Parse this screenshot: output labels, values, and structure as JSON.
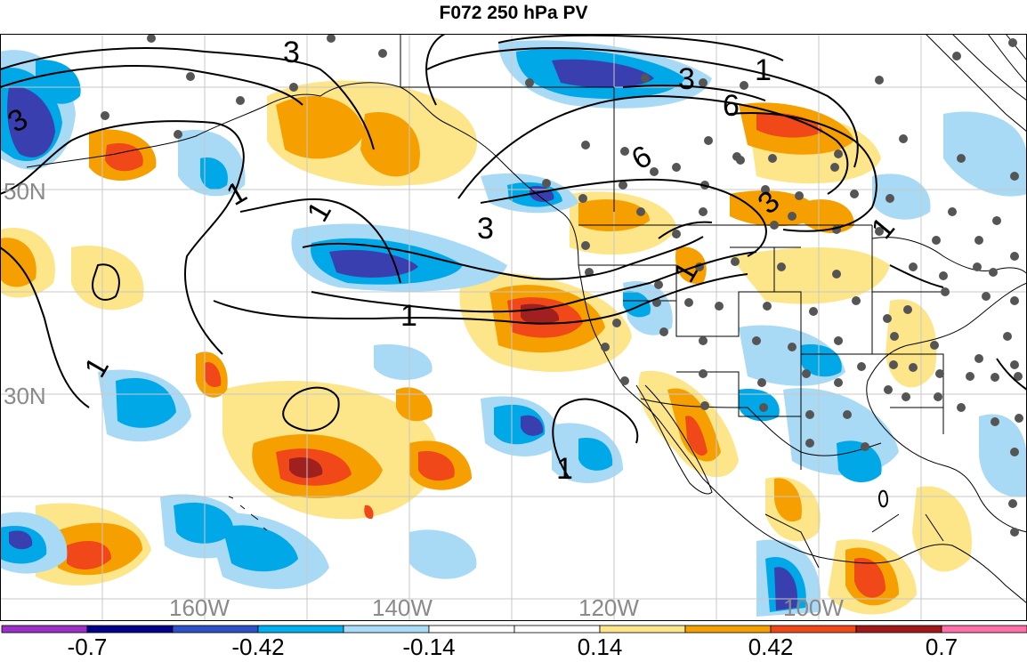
{
  "title": "F072 250 hPa PV",
  "lat_labels": [
    "50N",
    "30N"
  ],
  "lon_labels": [
    "160W",
    "140W",
    "120W",
    "100W"
  ],
  "contour_labels": [
    "3",
    "3",
    "3",
    "3",
    "6",
    "6",
    "1",
    "1",
    "1",
    "1",
    "1",
    "1",
    "1",
    "1",
    "3"
  ],
  "colorbar": {
    "colors": [
      "#9b30c8",
      "#00008b",
      "#2b50c8",
      "#00b0f0",
      "#a8dcf8",
      "#ffffff",
      "#ffffff",
      "#fde68a",
      "#f5a000",
      "#f04818",
      "#a01818",
      "#ff70a8"
    ],
    "tick_labels": [
      "-0.7",
      "-0.42",
      "-0.14",
      "0.14",
      "0.42",
      "0.7"
    ]
  },
  "colors": {
    "darkblue": "#3a3fb0",
    "midblue": "#00a8e8",
    "lightblue": "#a8daf6",
    "lightyellow": "#fde68a",
    "orange": "#f5a000",
    "red": "#f04818",
    "darkred": "#a02020"
  }
}
